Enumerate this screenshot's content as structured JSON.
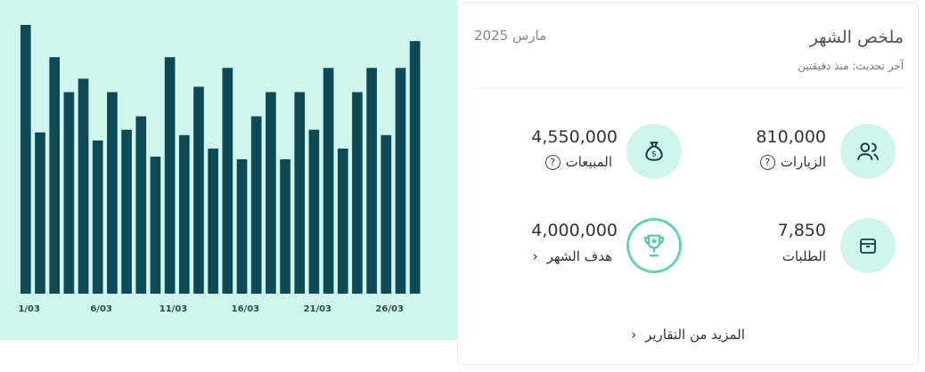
{
  "chart_data": {
    "type": "bar",
    "categories": [
      "1/03",
      null,
      null,
      null,
      null,
      "6/03",
      null,
      null,
      null,
      null,
      "11/03",
      null,
      null,
      null,
      null,
      "16/03",
      null,
      null,
      null,
      null,
      "21/03",
      null,
      null,
      null,
      null,
      "26/03",
      null,
      null
    ],
    "values": [
      100,
      60,
      88,
      75,
      80,
      57,
      75,
      61,
      66,
      51,
      88,
      59,
      77,
      54,
      84,
      50,
      66,
      75,
      50,
      75,
      61,
      84,
      54,
      75,
      84,
      59,
      84,
      94
    ],
    "color": "#0d4a55",
    "ylim": [
      0,
      100
    ]
  },
  "summary": {
    "title": "ملخص الشهر",
    "subtitle": "آخر تحديث: منذ دقيقتين",
    "period": "مارس 2025",
    "stats": [
      {
        "value": "810,000",
        "label": "الزيارات"
      },
      {
        "value": "4,550,000",
        "label": "المبيعات"
      },
      {
        "value": "7,850",
        "label": "الطلبات"
      },
      {
        "value": "4,000,000",
        "label": "هدف الشهر"
      }
    ],
    "more_link": "المزيد من التقارير"
  }
}
